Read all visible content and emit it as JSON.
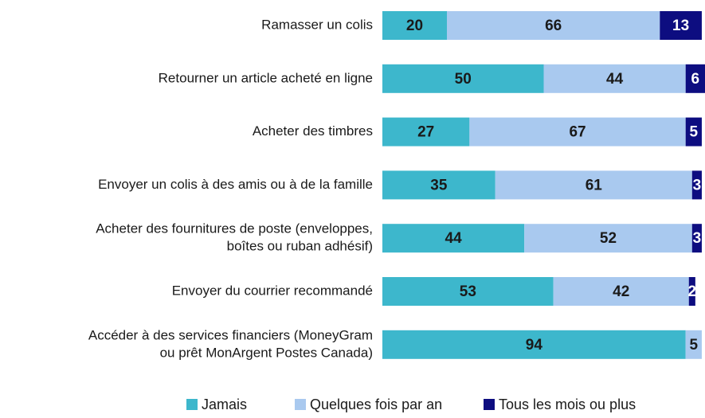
{
  "chart_data": {
    "type": "stacked_bar_horizontal",
    "categories": [
      "Ramasser un colis",
      "Retourner un article acheté en ligne",
      "Acheter des timbres",
      "Envoyer un colis à des amis ou à de la famille",
      [
        "Acheter des fournitures de poste (enveloppes,",
        "boîtes ou ruban adhésif)"
      ],
      "Envoyer du courrier recommandé",
      [
        "Accéder à des services financiers (MoneyGram",
        "ou prêt MonArgent Postes Canada)"
      ]
    ],
    "series": [
      {
        "name": "Jamais",
        "color": "#3db7cc",
        "values": [
          20,
          50,
          27,
          35,
          44,
          53,
          94
        ]
      },
      {
        "name": "Quelques fois par an",
        "color": "#a9c9ef",
        "values": [
          66,
          44,
          67,
          61,
          52,
          42,
          5
        ]
      },
      {
        "name": "Tous les mois ou plus",
        "color": "#0d0d80",
        "values": [
          13,
          6,
          5,
          3,
          3,
          2,
          null
        ]
      }
    ],
    "xlim": [
      0,
      100
    ],
    "legend": "bottom"
  }
}
